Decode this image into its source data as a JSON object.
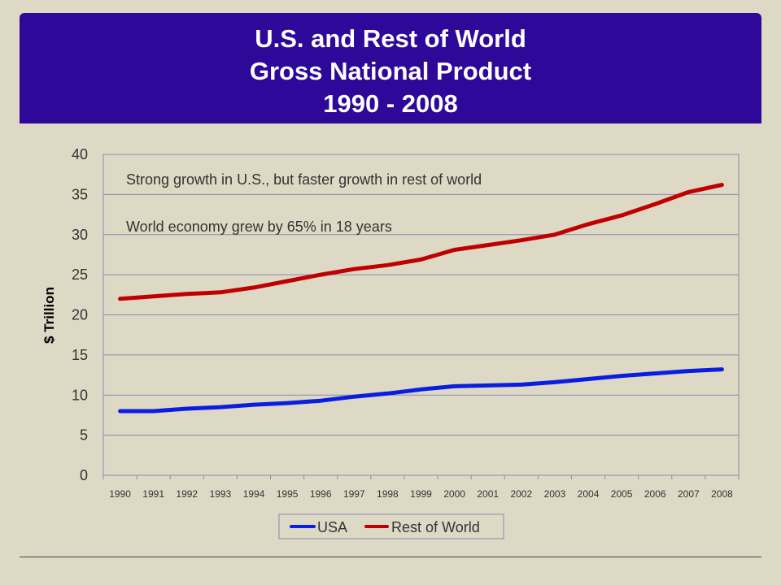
{
  "title": {
    "line1": "U.S. and Rest of World",
    "line2": "Gross National Product",
    "line3": "1990 - 2008"
  },
  "colors": {
    "banner": "#2e0898",
    "background": "#ddd9c4",
    "usa": "#0a1ee0",
    "rest_of_world": "#c00000"
  },
  "chart_data": {
    "type": "line",
    "ylabel": "$ Trillion",
    "xlabel": "",
    "ylim": [
      0,
      40
    ],
    "yticks": [
      0,
      5,
      10,
      15,
      20,
      25,
      30,
      35,
      40
    ],
    "grid": true,
    "legend_placement": "bottom",
    "categories": [
      "1990",
      "1991",
      "1992",
      "1993",
      "1994",
      "1995",
      "1996",
      "1997",
      "1998",
      "1999",
      "2000",
      "2001",
      "2002",
      "2003",
      "2004",
      "2005",
      "2006",
      "2007",
      "2008"
    ],
    "series": [
      {
        "name": "USA",
        "color": "#0a1ee0",
        "values": [
          8.0,
          8.0,
          8.3,
          8.5,
          8.8,
          9.0,
          9.3,
          9.8,
          10.2,
          10.7,
          11.1,
          11.2,
          11.3,
          11.6,
          12.0,
          12.4,
          12.7,
          13.0,
          13.2
        ]
      },
      {
        "name": "Rest of World",
        "color": "#c00000",
        "values": [
          22.0,
          22.3,
          22.6,
          22.8,
          23.4,
          24.2,
          25.0,
          25.7,
          26.2,
          26.9,
          28.1,
          28.7,
          29.3,
          30.0,
          31.3,
          32.4,
          33.8,
          35.3,
          36.2
        ]
      }
    ],
    "annotations": [
      "Strong growth in U.S., but faster growth in rest of world",
      "World economy grew by 65% in 18 years"
    ]
  }
}
